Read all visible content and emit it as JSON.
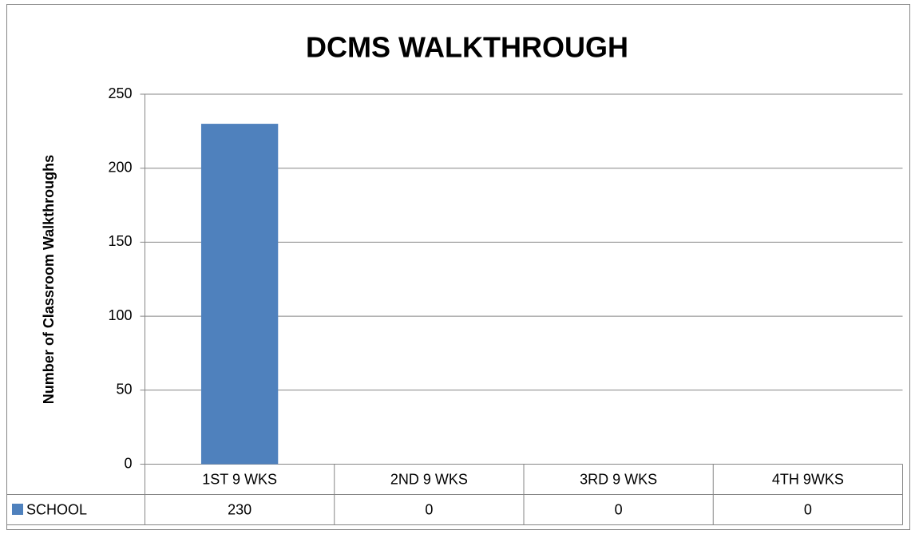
{
  "chart_data": {
    "type": "bar",
    "title": "DCMS WALKTHROUGH",
    "y_label": "Number of Classroom Walkthroughs",
    "categories": [
      "1ST 9 WKS",
      "2ND 9 WKS",
      "3RD 9 WKS",
      "4TH 9WKS"
    ],
    "series": [
      {
        "name": "SCHOOL",
        "color": "#4f81bd",
        "values": [
          230,
          0,
          0,
          0
        ]
      }
    ],
    "ylim": [
      0,
      250
    ],
    "yticks": [
      0,
      50,
      100,
      150,
      200,
      250
    ],
    "grid": true
  }
}
